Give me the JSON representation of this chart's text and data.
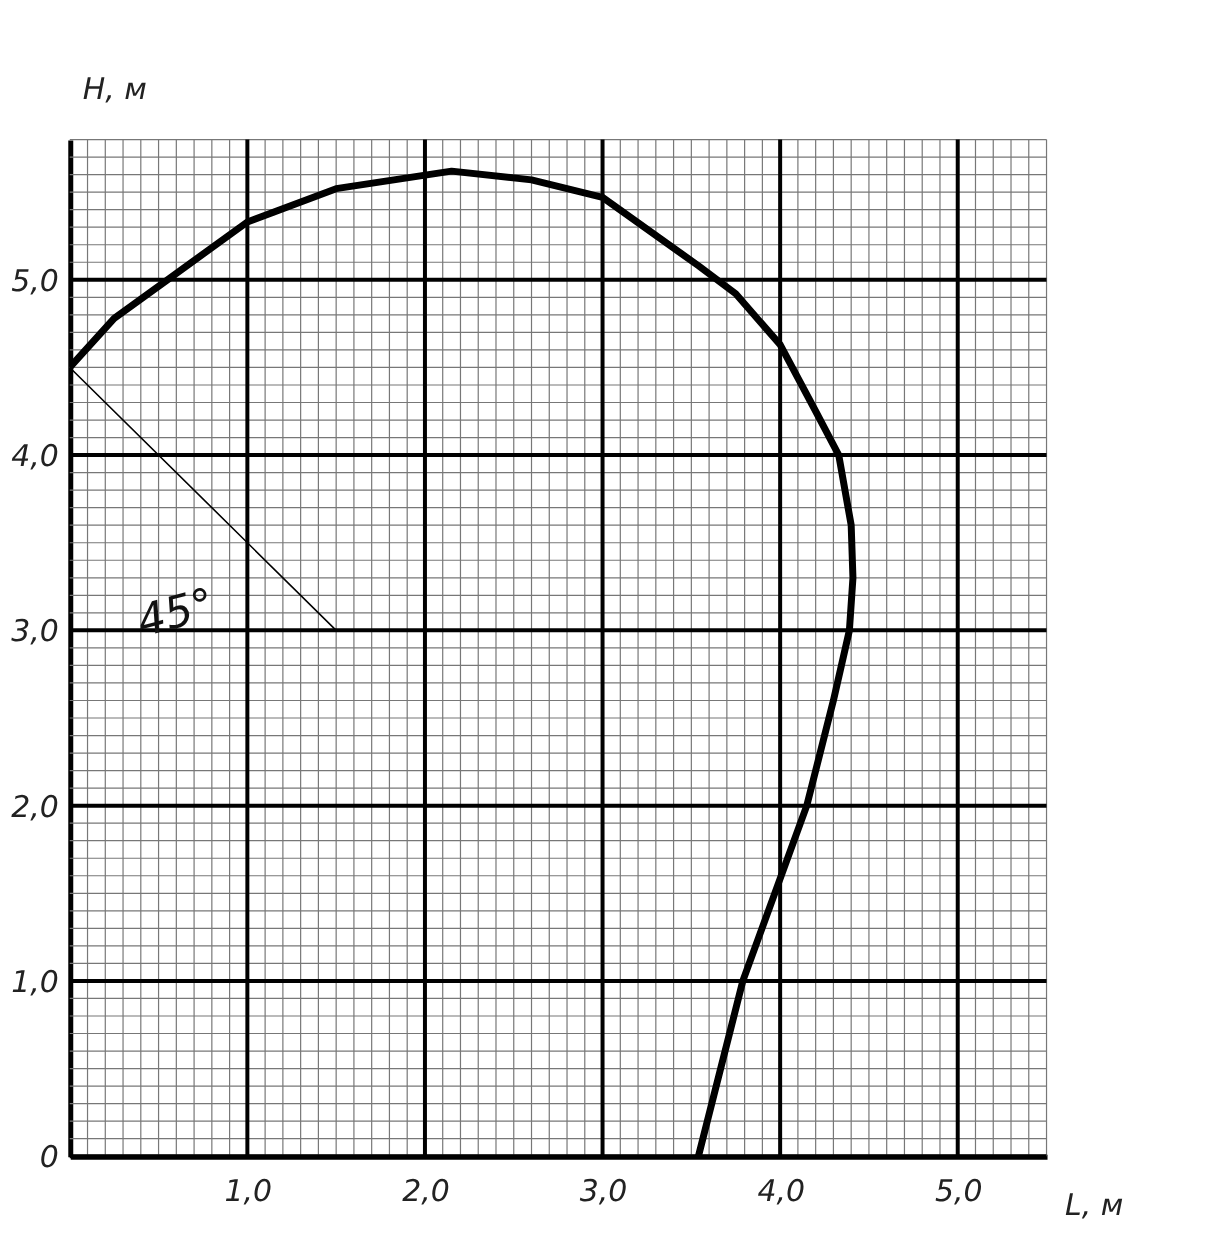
{
  "chart_data": {
    "type": "line",
    "xlabel": "L, м",
    "ylabel": "H, м",
    "xlim": [
      0,
      5.5
    ],
    "ylim": [
      0,
      5.8
    ],
    "grid": true,
    "line_style": "solid",
    "marker": "none",
    "annotations": [
      "45°"
    ],
    "series": [
      {
        "color": "#000000",
        "x": [
          0,
          0.25,
          0.55,
          1.0,
          1.5,
          2.15,
          2.6,
          3.0,
          3.54,
          3.75,
          4.0,
          4.2,
          4.33,
          4.4,
          4.41,
          4.39,
          4.3,
          4.15,
          3.79,
          3.54
        ],
        "values": [
          4.5,
          4.78,
          5.0,
          5.33,
          5.52,
          5.62,
          5.57,
          5.47,
          5.08,
          4.92,
          4.63,
          4.25,
          4.0,
          3.6,
          3.3,
          3.0,
          2.6,
          2.0,
          1.0,
          0
        ]
      },
      {
        "color": "#000000",
        "x": [
          0,
          1.5
        ],
        "values": [
          4.5,
          3.0
        ]
      }
    ],
    "xticks": [
      {
        "value": 0.1,
        "label": null
      },
      {
        "value": 0.2,
        "label": null
      },
      {
        "value": 0.3,
        "label": null
      },
      {
        "value": 0.4,
        "label": null
      },
      {
        "value": 0.5,
        "label": null
      },
      {
        "value": 0.6,
        "label": null
      },
      {
        "value": 0.7,
        "label": null
      },
      {
        "value": 0.8,
        "label": null
      },
      {
        "value": 0.9,
        "label": null
      },
      {
        "value": 1,
        "label": "1,0"
      },
      {
        "value": 1.1,
        "label": null
      },
      {
        "value": 1.2,
        "label": null
      },
      {
        "value": 1.3,
        "label": null
      },
      {
        "value": 1.4,
        "label": null
      },
      {
        "value": 1.5,
        "label": null
      },
      {
        "value": 1.6,
        "label": null
      },
      {
        "value": 1.7,
        "label": null
      },
      {
        "value": 1.8,
        "label": null
      },
      {
        "value": 1.9,
        "label": null
      },
      {
        "value": 2,
        "label": "2,0"
      },
      {
        "value": 2.1,
        "label": null
      },
      {
        "value": 2.2,
        "label": null
      },
      {
        "value": 2.3,
        "label": null
      },
      {
        "value": 2.4,
        "label": null
      },
      {
        "value": 2.5,
        "label": null
      },
      {
        "value": 2.6,
        "label": null
      },
      {
        "value": 2.7,
        "label": null
      },
      {
        "value": 2.8,
        "label": null
      },
      {
        "value": 2.9,
        "label": null
      },
      {
        "value": 3,
        "label": "3,0"
      },
      {
        "value": 3.1,
        "label": null
      },
      {
        "value": 3.2,
        "label": null
      },
      {
        "value": 3.3,
        "label": null
      },
      {
        "value": 3.4,
        "label": null
      },
      {
        "value": 3.5,
        "label": null
      },
      {
        "value": 3.6,
        "label": null
      },
      {
        "value": 3.7,
        "label": null
      },
      {
        "value": 3.8,
        "label": null
      },
      {
        "value": 3.9,
        "label": null
      },
      {
        "value": 4,
        "label": "4,0"
      },
      {
        "value": 4.1,
        "label": null
      },
      {
        "value": 4.2,
        "label": null
      },
      {
        "value": 4.3,
        "label": null
      },
      {
        "value": 4.4,
        "label": null
      },
      {
        "value": 4.5,
        "label": null
      },
      {
        "value": 4.6,
        "label": null
      },
      {
        "value": 4.7,
        "label": null
      },
      {
        "value": 4.8,
        "label": null
      },
      {
        "value": 4.9,
        "label": null
      },
      {
        "value": 5,
        "label": "5,0"
      },
      {
        "value": 5.1,
        "label": null
      },
      {
        "value": 5.2,
        "label": null
      },
      {
        "value": 5.3,
        "label": null
      },
      {
        "value": 5.4,
        "label": null
      },
      {
        "value": 5.5,
        "label": null
      }
    ],
    "yticks": [
      0,
      {
        "value": 0.1,
        "label": null
      },
      {
        "value": 0.2,
        "label": null
      },
      {
        "value": 0.3,
        "label": null
      },
      {
        "value": 0.4,
        "label": null
      },
      {
        "value": 0.5,
        "label": null
      },
      {
        "value": 0.6,
        "label": null
      },
      {
        "value": 0.7,
        "label": null
      },
      {
        "value": 0.8,
        "label": null
      },
      {
        "value": 0.9,
        "label": null
      },
      {
        "value": 1,
        "label": "1,0"
      },
      {
        "value": 1.1,
        "label": null
      },
      {
        "value": 1.2,
        "label": null
      },
      {
        "value": 1.3,
        "label": null
      },
      {
        "value": 1.4,
        "label": null
      },
      {
        "value": 1.5,
        "label": null
      },
      {
        "value": 1.6,
        "label": null
      },
      {
        "value": 1.7,
        "label": null
      },
      {
        "value": 1.8,
        "label": null
      },
      {
        "value": 1.9,
        "label": null
      },
      {
        "value": 2,
        "label": "2,0"
      },
      {
        "value": 2.1,
        "label": null
      },
      {
        "value": 2.2,
        "label": null
      },
      {
        "value": 2.3,
        "label": null
      },
      {
        "value": 2.4,
        "label": null
      },
      {
        "value": 2.5,
        "label": null
      },
      {
        "value": 2.6,
        "label": null
      },
      {
        "value": 2.7,
        "label": null
      },
      {
        "value": 2.8,
        "label": null
      },
      {
        "value": 2.9,
        "label": null
      },
      {
        "value": 3,
        "label": "3,0"
      },
      {
        "value": 3.1,
        "label": null
      },
      {
        "value": 3.2,
        "label": null
      },
      {
        "value": 3.3,
        "label": null
      },
      {
        "value": 3.4,
        "label": null
      },
      {
        "value": 3.5,
        "label": null
      },
      {
        "value": 3.6,
        "label": null
      },
      {
        "value": 3.7,
        "label": null
      },
      {
        "value": 3.8,
        "label": null
      },
      {
        "value": 3.9,
        "label": null
      },
      {
        "value": 4,
        "label": "4,0"
      },
      {
        "value": 4.1,
        "label": null
      },
      {
        "value": 4.2,
        "label": null
      },
      {
        "value": 4.3,
        "label": null
      },
      {
        "value": 4.4,
        "label": null
      },
      {
        "value": 4.5,
        "label": null
      },
      {
        "value": 4.6,
        "label": null
      },
      {
        "value": 4.7,
        "label": null
      },
      {
        "value": 4.8,
        "label": null
      },
      {
        "value": 4.9,
        "label": null
      },
      {
        "value": 5,
        "label": "5,0"
      },
      {
        "value": 5.1,
        "label": null
      },
      {
        "value": 5.2,
        "label": null
      },
      {
        "value": 5.3,
        "label": null
      },
      {
        "value": 5.4,
        "label": null
      },
      {
        "value": 5.5,
        "label": null
      },
      {
        "value": 5.6,
        "label": null
      },
      {
        "value": 5.7,
        "label": null
      },
      {
        "value": 5.8,
        "label": null
      }
    ]
  }
}
